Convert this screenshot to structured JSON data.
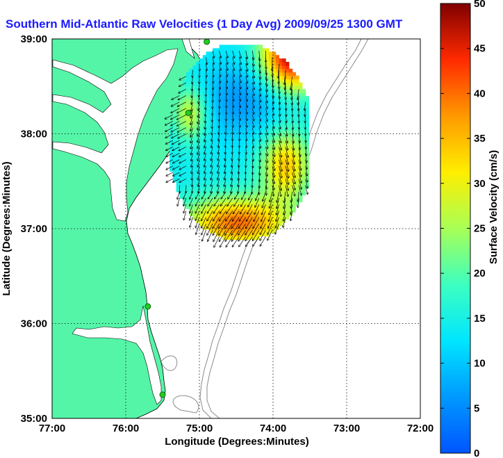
{
  "chart_data": {
    "type": "heatmap",
    "title": "Southern Mid-Atlantic Raw Velocities (1 Day Avg) 2009/09/25 1300 GMT",
    "xlabel": "Longitude (Degrees:Minutes)",
    "ylabel": "Latitude (Degrees:Minutes)",
    "x_ticks": [
      "77:00",
      "76:00",
      "75:00",
      "74:00",
      "73:00",
      "72:00"
    ],
    "y_ticks": [
      "39:00",
      "38:00",
      "37:00",
      "36:00",
      "35:00"
    ],
    "xlim": [
      -77,
      -72
    ],
    "ylim": [
      35,
      39
    ],
    "grid": true,
    "colorbar": {
      "label": "Surface Velocity (cm/s)",
      "range": [
        0,
        50
      ],
      "ticks": [
        "0",
        "5",
        "10",
        "15",
        "20",
        "25",
        "30",
        "35",
        "40",
        "45",
        "50"
      ],
      "colormap": "jet"
    },
    "velocity_field": {
      "lon_range": [
        -75.6,
        -73.6
      ],
      "lat_range": [
        36.85,
        38.95
      ],
      "description_speeds_cm_s": {
        "central_low": 8,
        "north_east_high": 50,
        "south_band": 38,
        "east_band": 36
      }
    },
    "radar_sites": [
      {
        "lon": -74.9,
        "lat": 38.97
      },
      {
        "lon": -75.15,
        "lat": 38.22
      },
      {
        "lon": -75.7,
        "lat": 36.18
      },
      {
        "lon": -75.5,
        "lat": 35.25
      }
    ]
  },
  "colors": {
    "land": "#55f5a8",
    "title": "#1a1aff",
    "grid": "#000000",
    "bathymetry": "#808080",
    "site_marker": "#22cc22"
  }
}
